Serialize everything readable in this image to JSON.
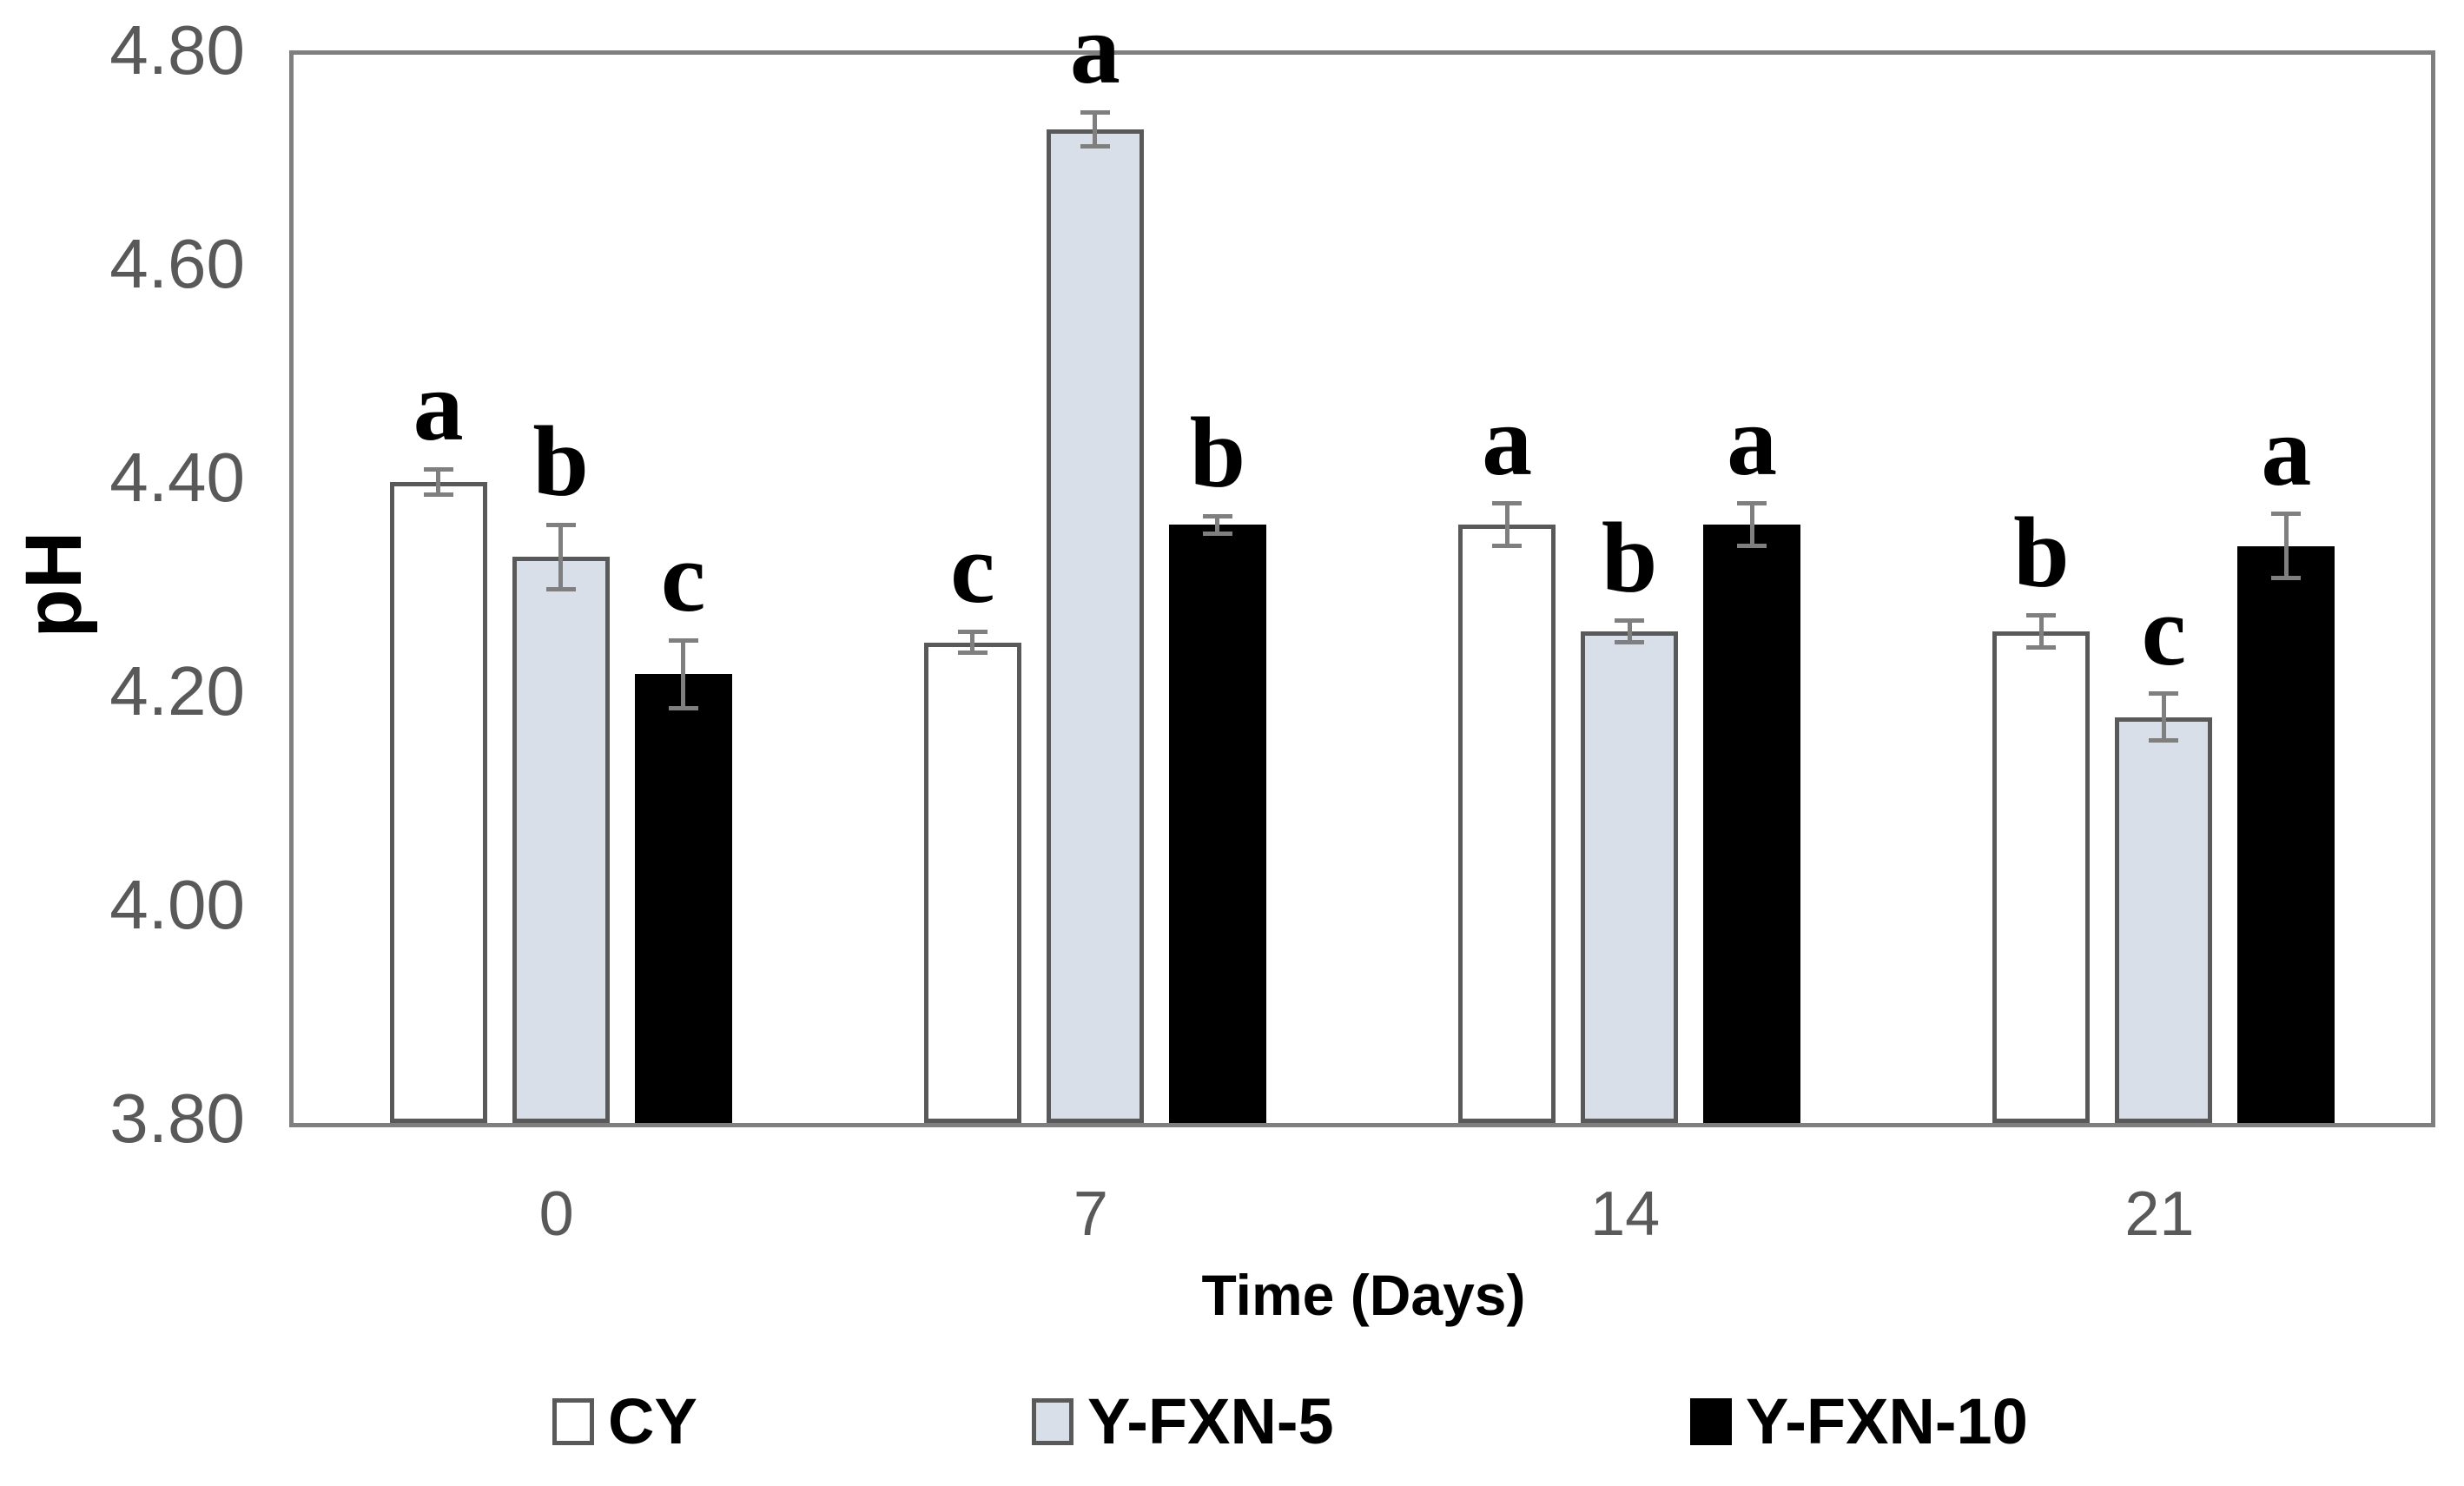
{
  "chart_data": {
    "type": "bar",
    "title": "",
    "xlabel": "Time (Days)",
    "ylabel": "pH",
    "categories": [
      "0",
      "7",
      "14",
      "21"
    ],
    "ylim": [
      3.8,
      4.8
    ],
    "ytick_labels": [
      "4.80",
      "4.60",
      "4.40",
      "4.20",
      "4.00",
      "3.80"
    ],
    "ytick_values": [
      4.8,
      4.6,
      4.4,
      4.2,
      4.0,
      3.8
    ],
    "grid": false,
    "legend_position": "bottom",
    "error_bar_color": "#7f7f7f",
    "axis_border_color": "#7f7f7f",
    "tick_label_color": "#595959",
    "series": [
      {
        "name": "CY",
        "fill": "#ffffff",
        "border": "#595959",
        "values": [
          4.4,
          4.25,
          4.36,
          4.26
        ],
        "errors": [
          0.012,
          0.01,
          0.02,
          0.015
        ],
        "letters": [
          "a",
          "c",
          "a",
          "b"
        ]
      },
      {
        "name": "Y-FXN-5",
        "fill": "#d9dfe9",
        "border": "#595959",
        "values": [
          4.33,
          4.73,
          4.26,
          4.18
        ],
        "errors": [
          0.03,
          0.016,
          0.01,
          0.022
        ],
        "letters": [
          "b",
          "a",
          "b",
          "c"
        ]
      },
      {
        "name": "Y-FXN-10",
        "fill": "#000000",
        "border": "#000000",
        "values": [
          4.22,
          4.36,
          4.36,
          4.34
        ],
        "errors": [
          0.032,
          0.008,
          0.02,
          0.03
        ],
        "letters": [
          "c",
          "b",
          "a",
          "a"
        ]
      }
    ]
  }
}
